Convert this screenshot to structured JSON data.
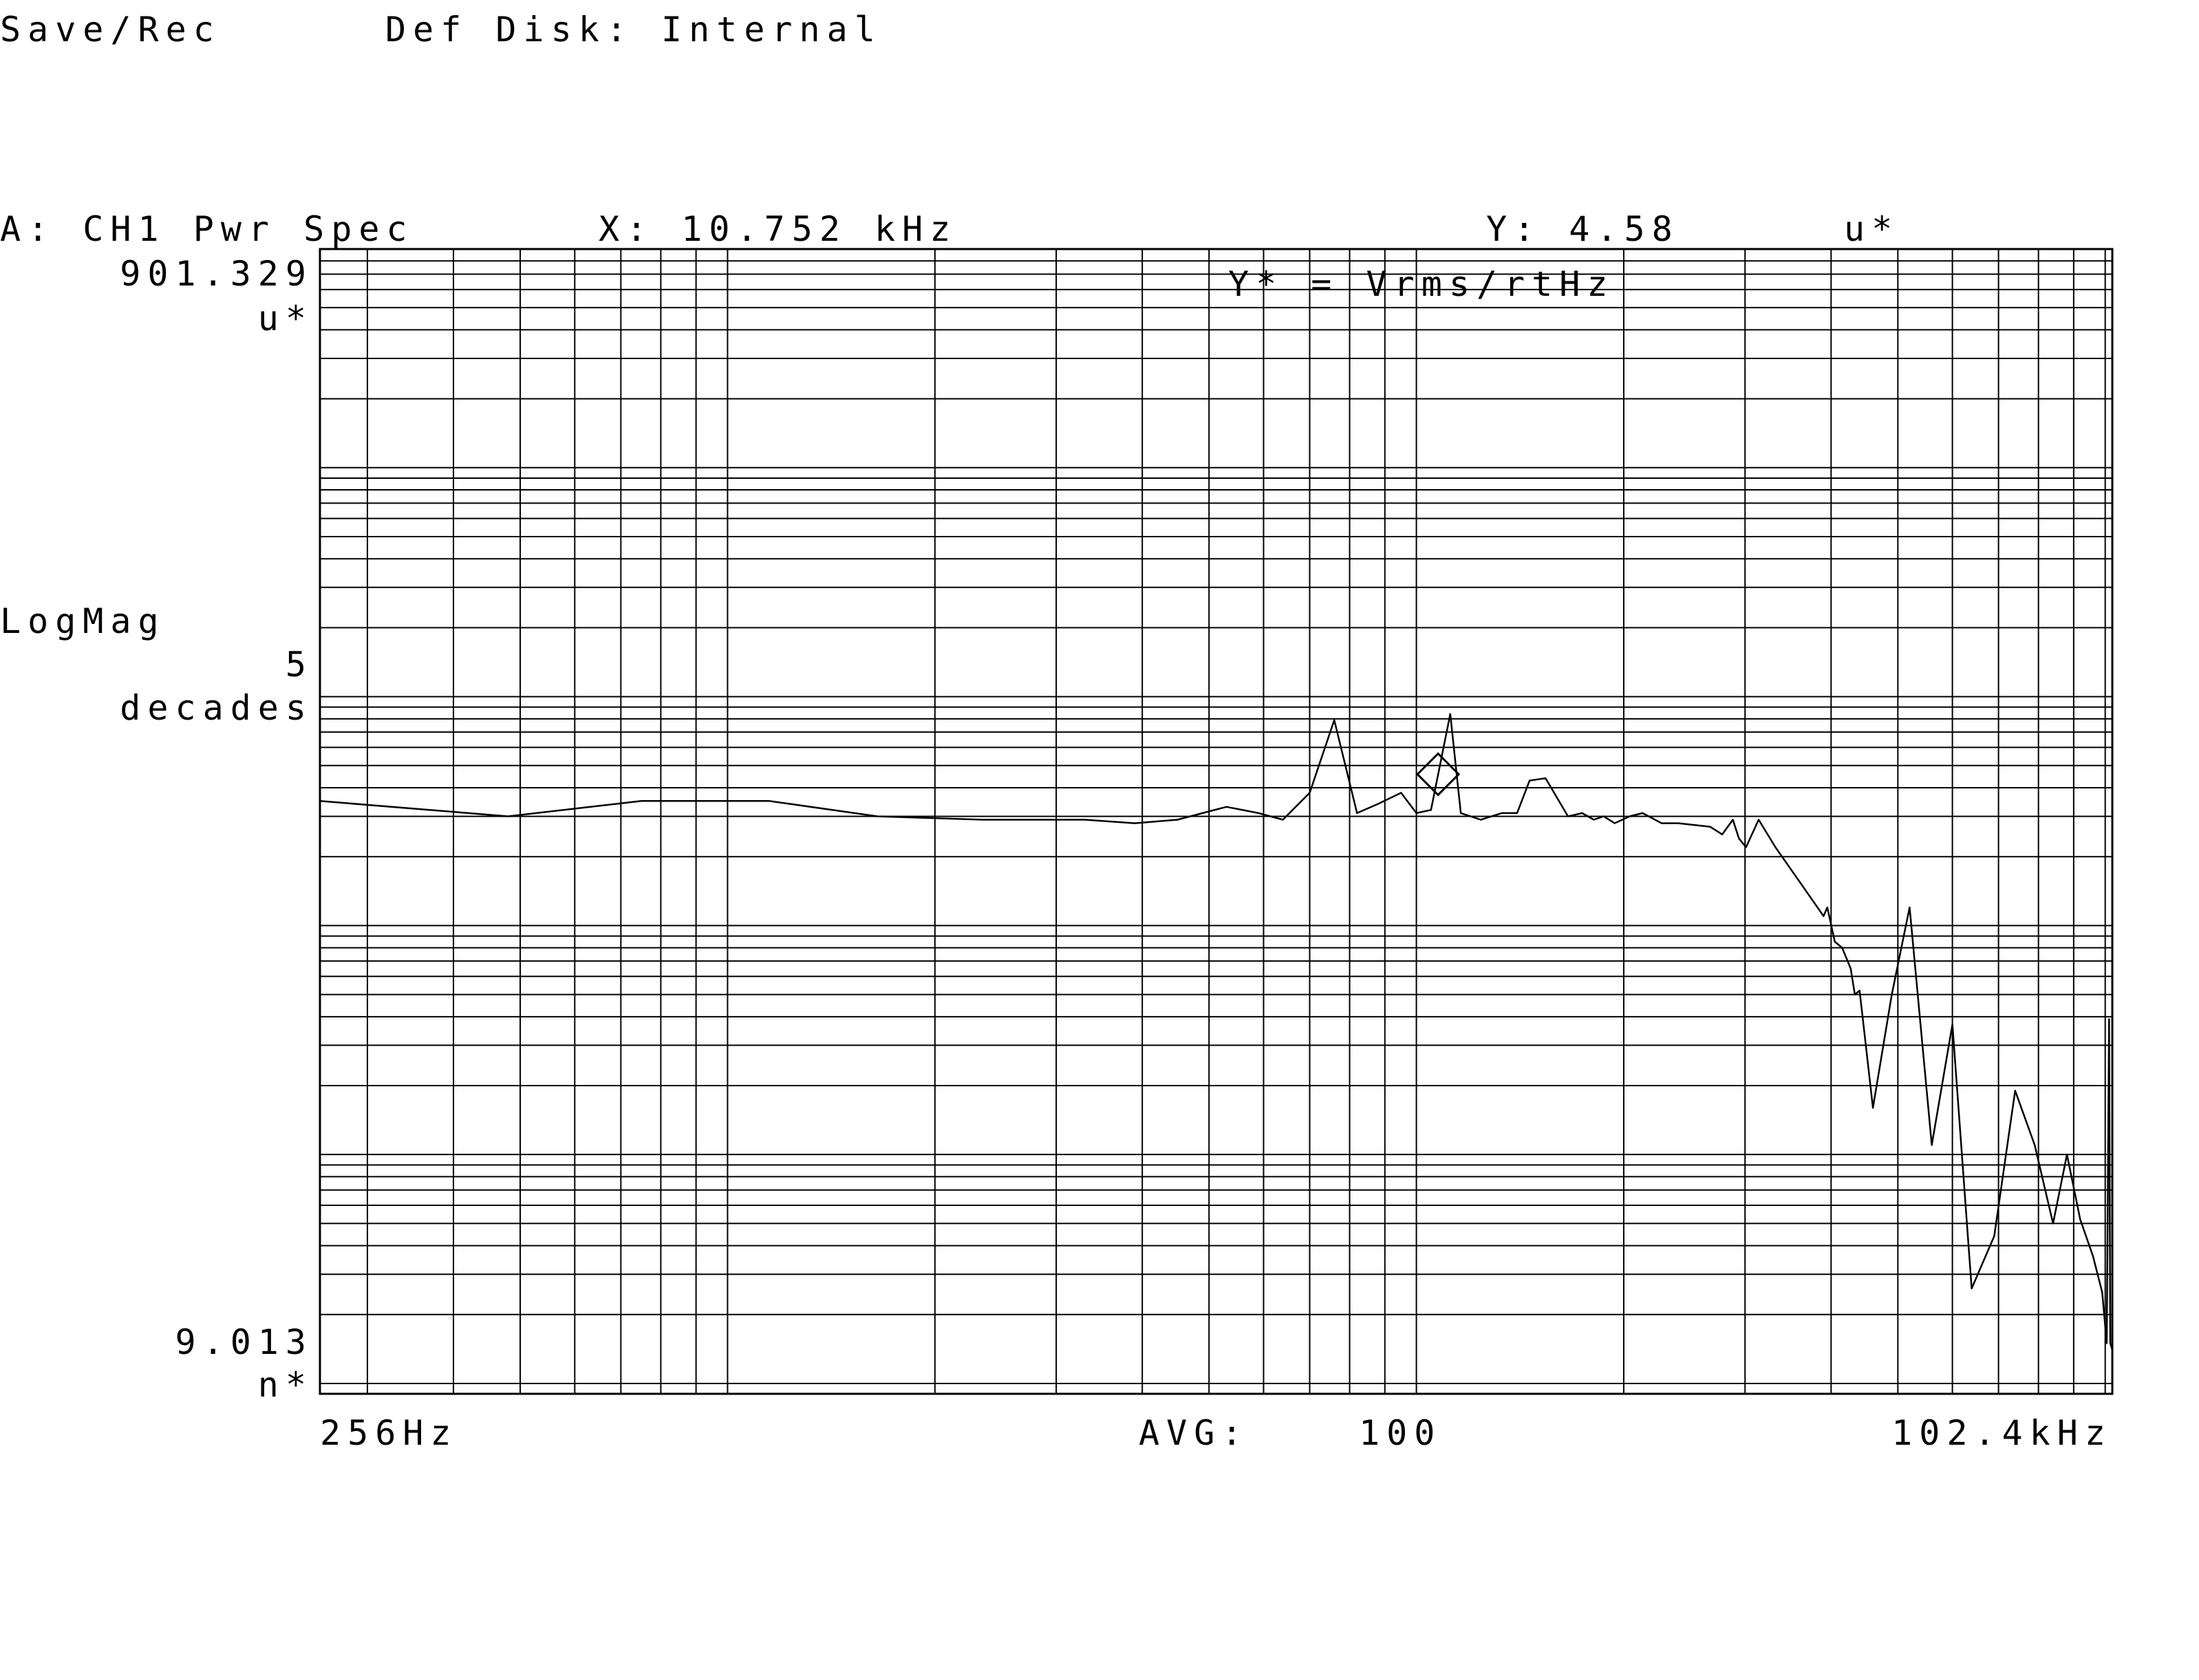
{
  "header": {
    "status": "Save/Rec",
    "disk": "Def Disk:  Internal"
  },
  "trace": {
    "title": "A: CH1 Pwr Spec",
    "marker_x": "X: 10.752  kHz",
    "marker_y": "Y: 4.58",
    "marker_y_unit": "u*",
    "units_note": "Y* = Vrms/rtHz"
  },
  "yaxis": {
    "top_value": "901.329",
    "top_unit": "u*",
    "scale_type": "LogMag",
    "scale_decades": "5",
    "scale_unit": "decades",
    "bottom_value": "9.013",
    "bottom_unit": "n*"
  },
  "xaxis": {
    "start_label": "256Hz",
    "stop_label": "102.4kHz"
  },
  "averaging": {
    "label": "AVG:",
    "count": "100"
  },
  "colors": {
    "trace": "#000000",
    "grid": "#000000",
    "background": "#ffffff"
  },
  "chart_data": {
    "type": "line",
    "title": "A: CH1 Pwr Spec",
    "xscale": "log",
    "yscale": "log",
    "xlim": [
      256,
      102400
    ],
    "ylim": [
      9.013e-09,
      0.000901329
    ],
    "ylabel": "Vrms/rtHz",
    "grid": true,
    "marker": {
      "x": 10752,
      "y": 4.58e-06
    },
    "x": [
      256,
      480,
      750,
      1150,
      1650,
      2350,
      3300,
      3900,
      4500,
      5300,
      5900,
      6400,
      7000,
      7600,
      8200,
      8800,
      9500,
      10000,
      10500,
      11200,
      11600,
      12400,
      13300,
      14000,
      14600,
      15400,
      16600,
      17400,
      18100,
      18700,
      19400,
      20400,
      21300,
      22700,
      24000,
      26700,
      27800,
      28800,
      29400,
      30100,
      31400,
      33200,
      36300,
      39000,
      39500,
      40500,
      41500,
      42700,
      43300,
      44000,
      46000,
      49000,
      52000,
      56000,
      60000,
      64000,
      69000,
      74000,
      79000,
      84000,
      88000,
      92000,
      96000,
      99000,
      100500,
      101300,
      101700,
      102400
    ],
    "y": [
      3.5e-06,
      3e-06,
      3.5e-06,
      3.5e-06,
      3e-06,
      2.9e-06,
      2.9e-06,
      2.8e-06,
      2.9e-06,
      3.3e-06,
      3.1e-06,
      2.9e-06,
      3.8e-06,
      7.9e-06,
      3.1e-06,
      3.4e-06,
      3.8e-06,
      3.1e-06,
      3.2e-06,
      8.4e-06,
      3.1e-06,
      2.9e-06,
      3.1e-06,
      3.1e-06,
      4.3e-06,
      4.4e-06,
      3e-06,
      3.1e-06,
      2.9e-06,
      3e-06,
      2.8e-06,
      3e-06,
      3.1e-06,
      2.8e-06,
      2.8e-06,
      2.7e-06,
      2.5e-06,
      2.9e-06,
      2.4e-06,
      2.2e-06,
      2.9e-06,
      2.2e-06,
      1.5e-06,
      1.1e-06,
      1.2e-06,
      8.5e-07,
      8e-07,
      6.5e-07,
      5e-07,
      5.2e-07,
      1.6e-07,
      5e-07,
      1.2e-06,
      1.1e-07,
      3.7e-07,
      2.6e-08,
      4.4e-08,
      1.9e-07,
      1.1e-07,
      5e-08,
      1e-07,
      5.2e-08,
      3.6e-08,
      2.5e-08,
      1.5e-08,
      3.9e-07,
      1.5e-08,
      1.4e-08
    ]
  }
}
